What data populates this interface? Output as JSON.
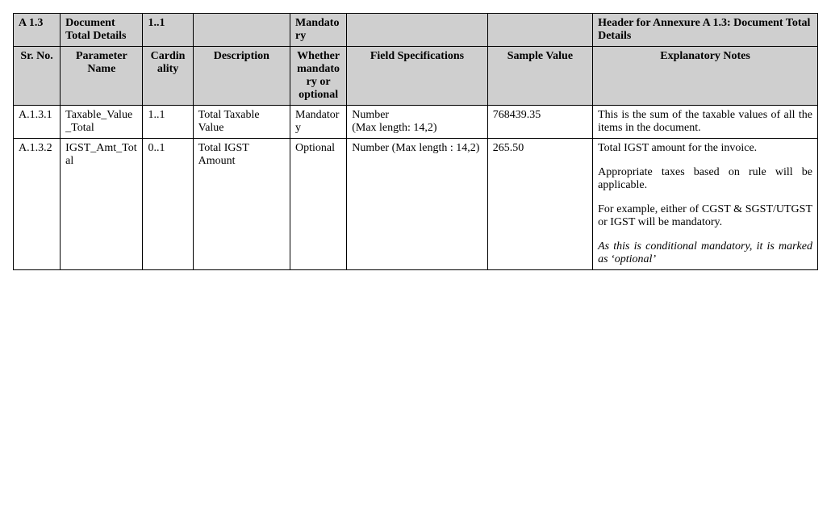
{
  "section_row": {
    "sr": "A 1.3",
    "param": "Document Total Details",
    "card": "1..1",
    "desc": "",
    "mandatory": "Mandatory",
    "spec": "",
    "sample": "",
    "notes": "Header for Annexure A 1.3: Document Total Details"
  },
  "header_row": {
    "c1": "Sr. No.",
    "c2": "Parameter Name",
    "c3": "Cardinality",
    "c4": "Description",
    "c5": "Whether mandatory or optional",
    "c6": "Field Specifications",
    "c7": "Sample Value",
    "c8": "Explanatory Notes"
  },
  "rows": [
    {
      "sr": "A.1.3.1",
      "param": "Taxable_Value_Total",
      "card": "1..1",
      "desc": "Total Taxable Value",
      "mandatory": "Mandatory",
      "spec": "Number\n(Max length: 14,2)",
      "sample": "768439.35",
      "notes": "This is the sum of the taxable values of all the items in the document."
    },
    {
      "sr": "A.1.3.2",
      "param": "IGST_Amt_Total",
      "card": "0..1",
      "desc": "Total IGST Amount",
      "mandatory": "Optional",
      "spec": "Number (Max length : 14,2)",
      "sample": "265.50",
      "notes_parts": [
        {
          "text": "Total IGST amount for the invoice.",
          "italic": false
        },
        {
          "text": "Appropriate taxes based on rule will be applicable.",
          "italic": false
        },
        {
          "text": "For example, either of CGST & SGST/UTGST or IGST will be mandatory.",
          "italic": false
        },
        {
          "text": "As this is conditional mandatory, it is marked as ‘optional’",
          "italic": true
        }
      ]
    }
  ]
}
